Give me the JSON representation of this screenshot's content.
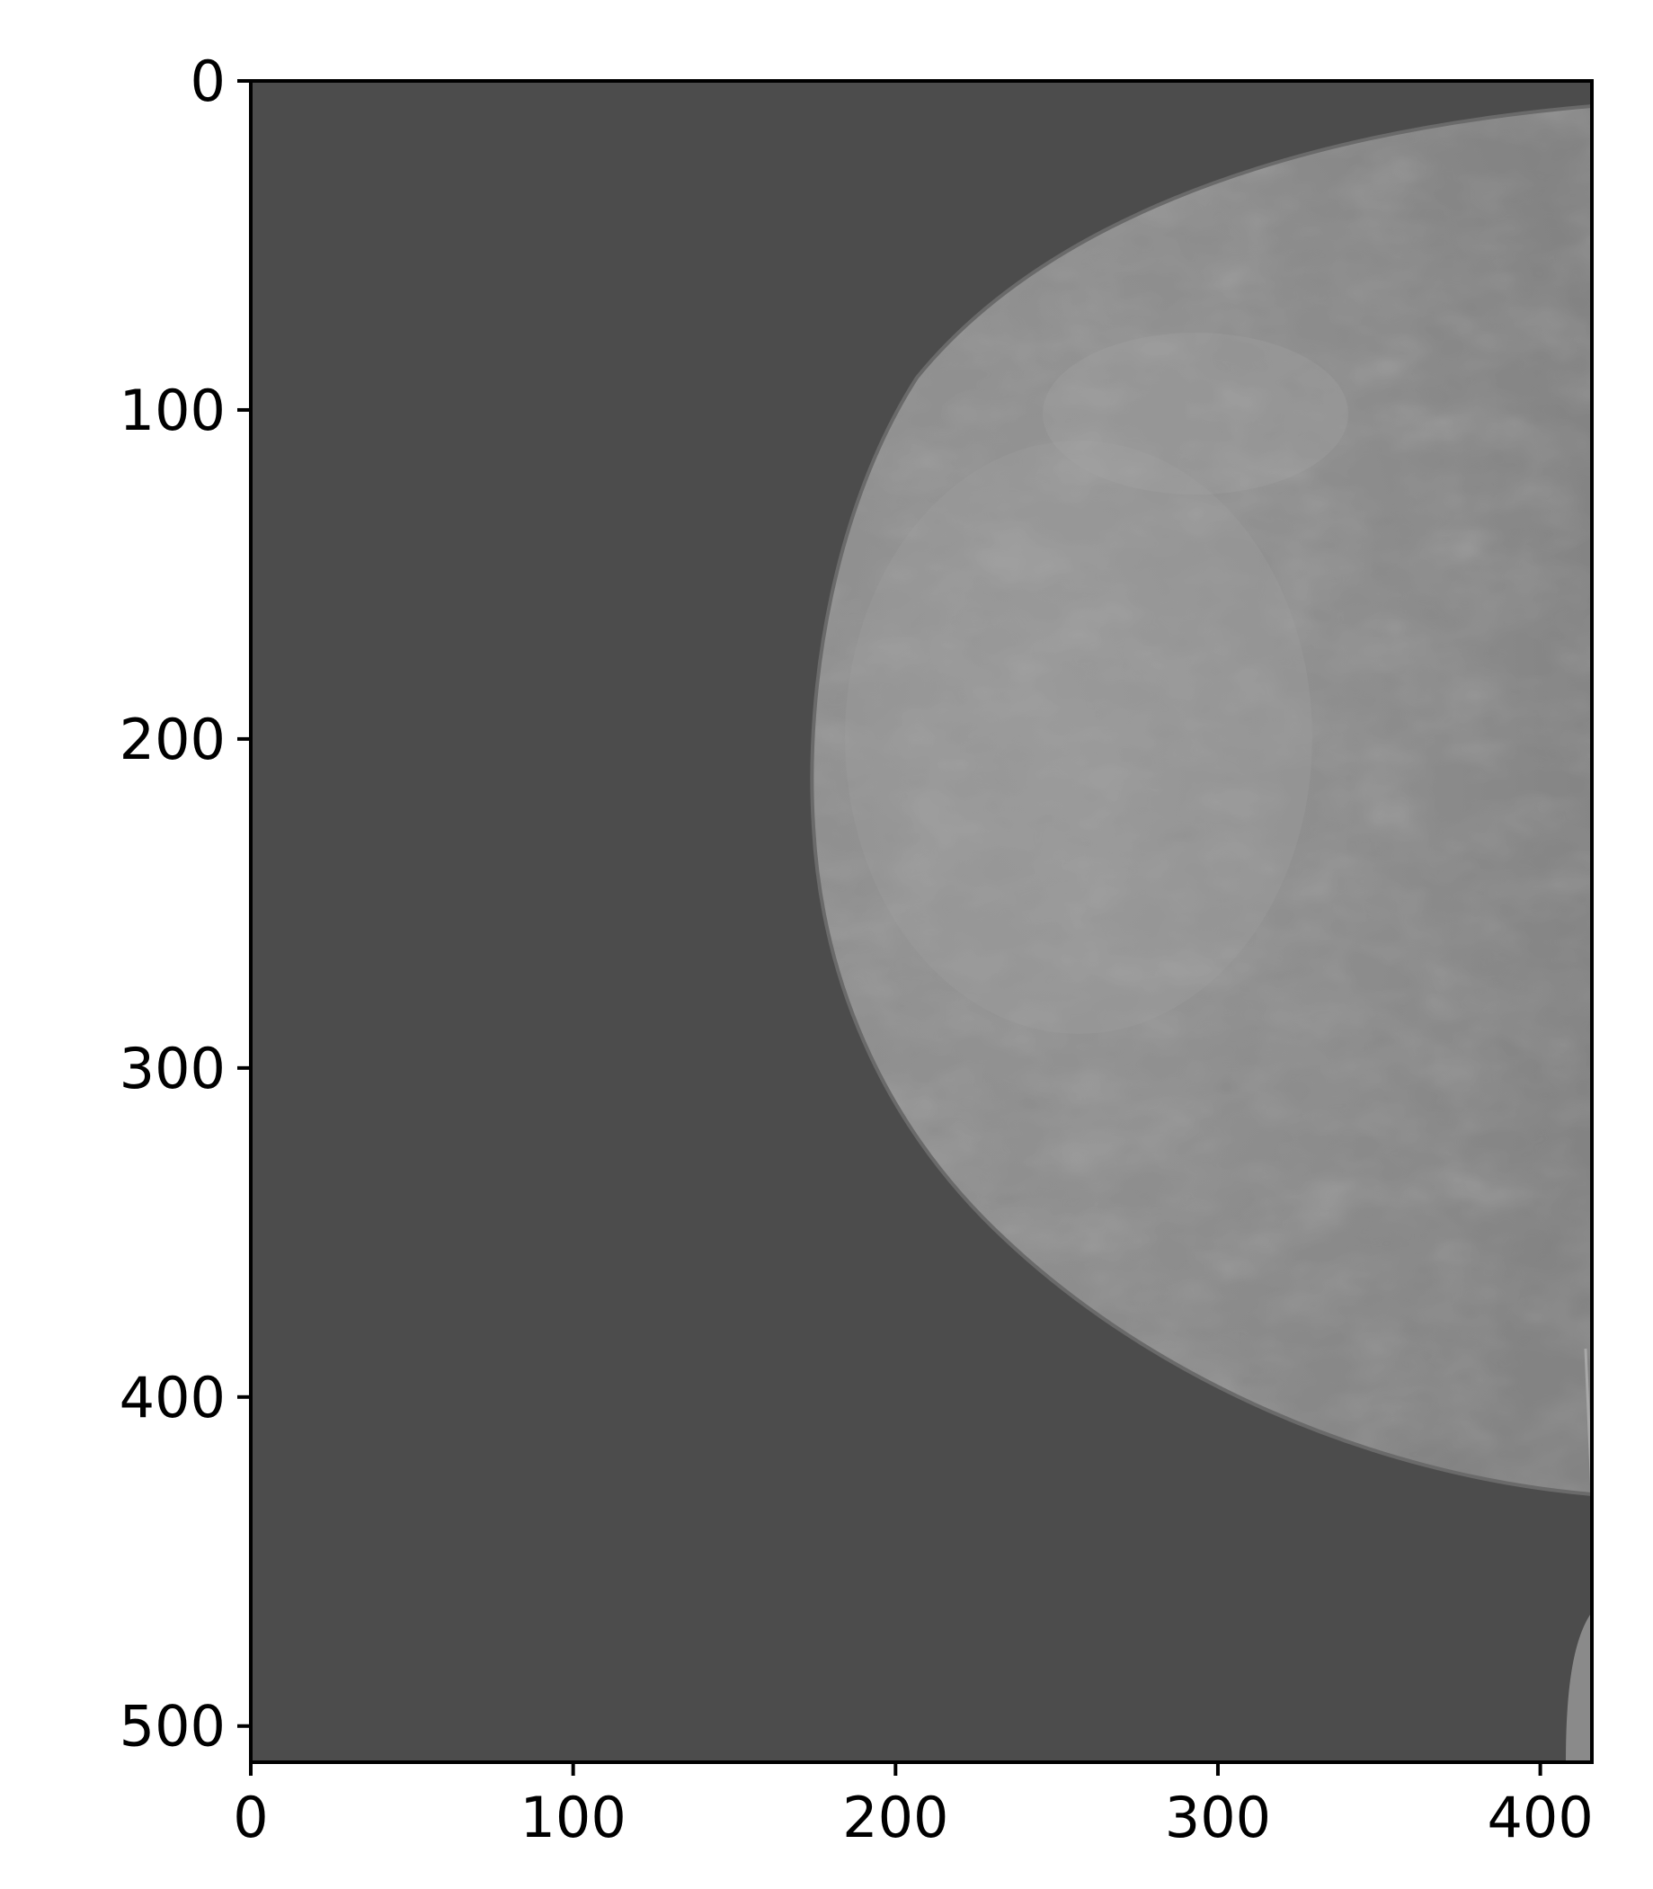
{
  "image": {
    "kind": "grayscale mammogram (craniocaudal view)",
    "colormap": "gray",
    "background_color": "#4c4c4c",
    "tissue_color": "#8a8a8a"
  },
  "axes": {
    "x_ticks": [
      "0",
      "100",
      "200",
      "300",
      "400"
    ],
    "y_ticks": [
      "0",
      "100",
      "200",
      "300",
      "400",
      "500"
    ],
    "xlim": [
      0,
      416
    ],
    "ylim": [
      511,
      0
    ],
    "y_inverted": true,
    "grid": false
  }
}
